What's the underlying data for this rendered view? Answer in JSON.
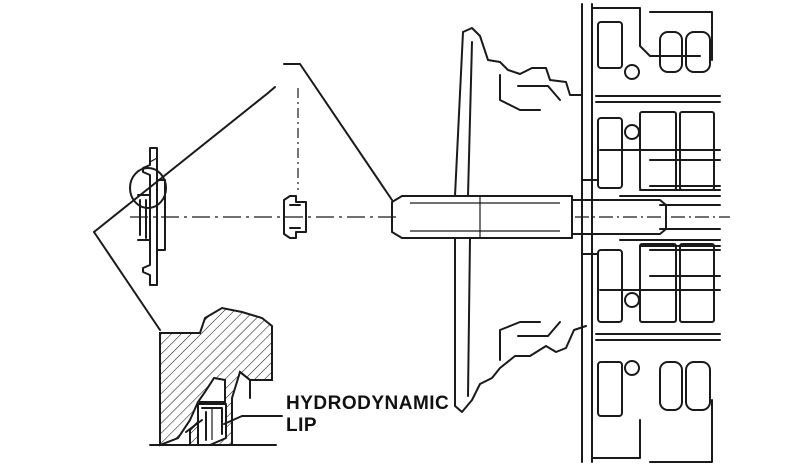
{
  "callout": {
    "line1": "HYDRODYNAMIC",
    "line2": "LIP"
  },
  "colors": {
    "ink": "#1a1a1a",
    "paper": "#ffffff"
  }
}
